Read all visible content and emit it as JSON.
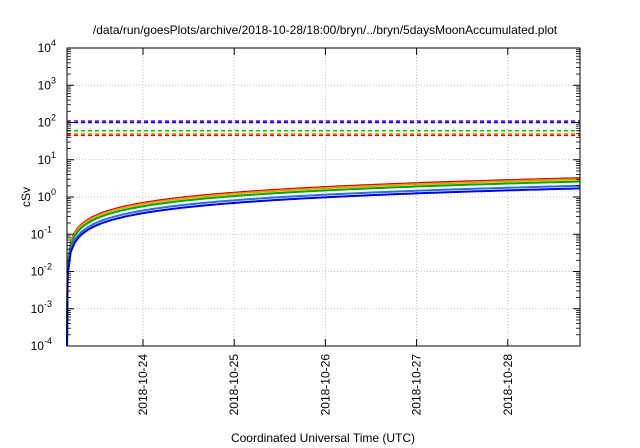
{
  "chart_data": {
    "type": "line",
    "title": "/data/run/goesPlots/archive/2018-10-28/18:00/bryn/../bryn/5daysMoonAccumulated.plot",
    "xlabel": "Coordinated Universal Time (UTC)",
    "ylabel": "cSv",
    "yscale": "log",
    "grid": true,
    "xlim": [
      "2018-10-23T04:00",
      "2018-10-28T19:00"
    ],
    "ylim": [
      0.0001,
      10000
    ],
    "x_ticks": [
      "2018-10-24",
      "2018-10-25",
      "2018-10-26",
      "2018-10-27",
      "2018-10-28"
    ],
    "y_ticks": [
      {
        "base": "10",
        "exp": "-4",
        "value": 0.0001
      },
      {
        "base": "10",
        "exp": "-3",
        "value": 0.001
      },
      {
        "base": "10",
        "exp": "-2",
        "value": 0.01
      },
      {
        "base": "10",
        "exp": "-1",
        "value": 0.1
      },
      {
        "base": "10",
        "exp": "0",
        "value": 1
      },
      {
        "base": "10",
        "exp": "1",
        "value": 10
      },
      {
        "base": "10",
        "exp": "2",
        "value": 100
      },
      {
        "base": "10",
        "exp": "3",
        "value": 1000
      },
      {
        "base": "10",
        "exp": "4",
        "value": 10000
      }
    ],
    "series": [
      {
        "color": "#cc0000",
        "style": "solid",
        "final_value": 3.2
      },
      {
        "color": "#e6a000",
        "style": "solid",
        "final_value": 3.0
      },
      {
        "color": "#00aa00",
        "style": "solid",
        "final_value": 2.6
      },
      {
        "color": "#2a6fdb",
        "style": "solid",
        "final_value": 2.0
      },
      {
        "color": "#0000ee",
        "style": "solid",
        "final_value": 1.7
      }
    ],
    "thresholds": [
      {
        "color": "#8800cc",
        "style": "dashed",
        "value": 110
      },
      {
        "color": "#0000ee",
        "style": "dashed",
        "value": 100
      },
      {
        "color": "#00cc00",
        "style": "dashed",
        "value": 60
      },
      {
        "color": "#ff9900",
        "style": "dashed",
        "value": 50
      },
      {
        "color": "#ee0000",
        "style": "dashed",
        "value": 45
      }
    ]
  }
}
